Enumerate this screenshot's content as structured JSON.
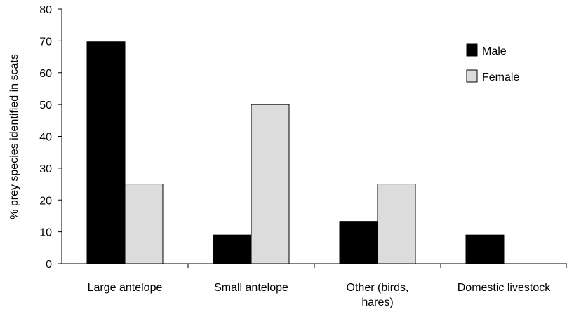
{
  "chart_data": {
    "type": "bar",
    "title": "",
    "xlabel": "",
    "ylabel": "% prey species identified in scats",
    "ylim": [
      0,
      80
    ],
    "yticks": [
      0,
      10,
      20,
      30,
      40,
      50,
      60,
      70,
      80
    ],
    "grid": false,
    "legend_position": "top-right",
    "categories": [
      [
        "Large antelope"
      ],
      [
        "Small antelope"
      ],
      [
        "Other (birds,",
        "hares)"
      ],
      [
        "Domestic livestock"
      ]
    ],
    "series": [
      {
        "name": "Male",
        "color": "#000000",
        "values": [
          69.7,
          9,
          13.3,
          9
        ]
      },
      {
        "name": "Female",
        "color": "#dcdcdc",
        "values": [
          25,
          50,
          25,
          0
        ]
      }
    ]
  }
}
